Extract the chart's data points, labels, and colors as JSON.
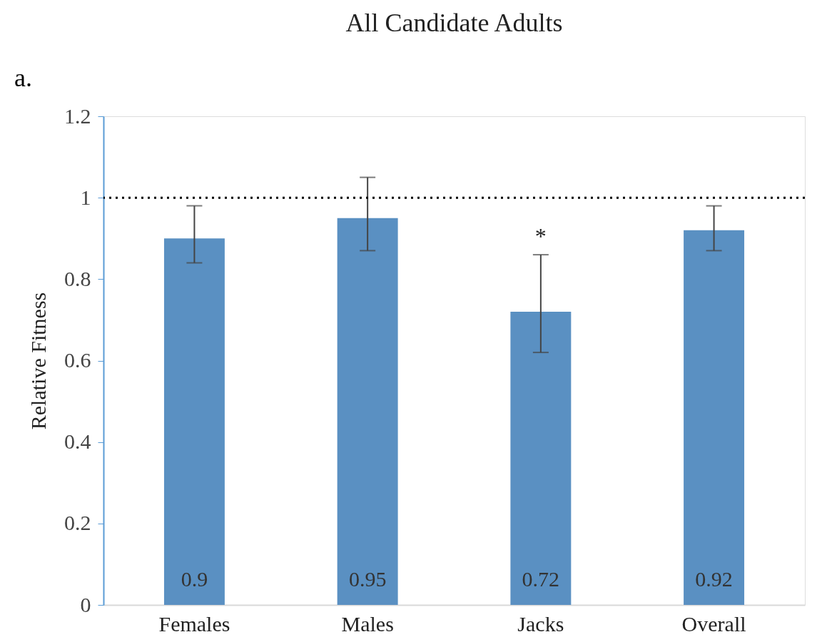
{
  "chart_data": {
    "type": "bar",
    "title": "All Candidate Adults",
    "ylabel": "Relative Fitness",
    "categories": [
      "Females",
      "Males",
      "Jacks",
      "Overall"
    ],
    "values": [
      0.9,
      0.95,
      0.72,
      0.92
    ],
    "errors": [
      [
        0.84,
        0.98
      ],
      [
        0.87,
        1.05
      ],
      [
        0.62,
        0.86
      ],
      [
        0.87,
        0.98
      ]
    ],
    "color": "#5a90c2",
    "ylim": [
      0,
      1.2
    ],
    "yticks": [
      0,
      0.2,
      0.4,
      0.6,
      0.8,
      1,
      1.2
    ],
    "grid": false,
    "data_labels": true,
    "ref_lines": [
      {
        "axis": "y",
        "value": 1,
        "color": "#000000",
        "line_style": "dotted"
      }
    ],
    "annotations": [
      "a.",
      {
        "text": "*",
        "x": "Jacks",
        "y": 0.86
      }
    ]
  }
}
